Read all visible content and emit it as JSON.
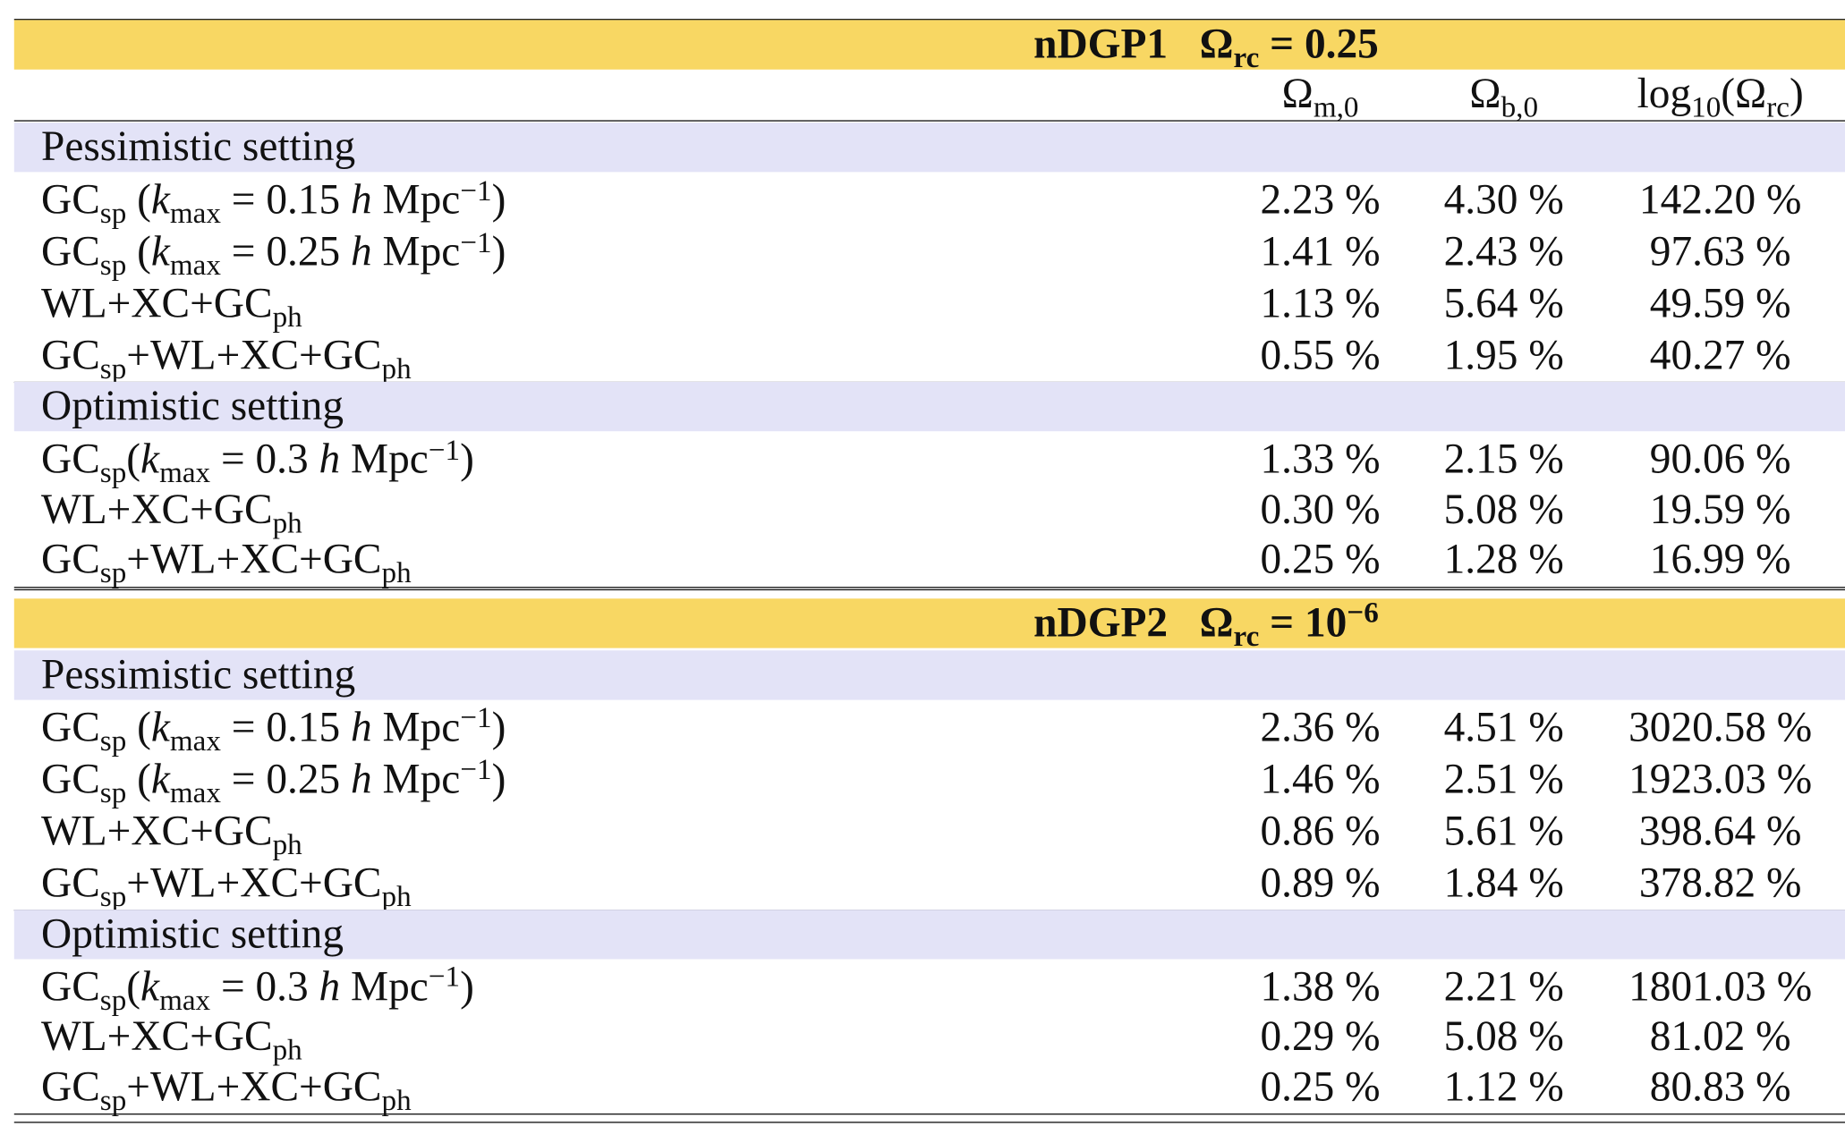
{
  "sections": [
    {
      "title": [
        {
          "text": "nDGP1   Ω"
        },
        {
          "text": "rc",
          "sub": true
        },
        {
          "text": " = 0.25"
        }
      ],
      "columns": [
        [
          {
            "text": "Ω"
          },
          {
            "text": "m,0",
            "sub": true
          }
        ],
        [
          {
            "text": "Ω"
          },
          {
            "text": "b,0",
            "sub": true
          }
        ],
        [
          {
            "text": "log"
          },
          {
            "text": "10",
            "sub": true
          },
          {
            "text": "(Ω"
          },
          {
            "text": "rc",
            "sub": true
          },
          {
            "text": ")"
          }
        ]
      ],
      "groups": [
        {
          "name": "Pessimistic setting",
          "rows": [
            {
              "label": [
                {
                  "text": "GC"
                },
                {
                  "text": "sp",
                  "sub": true
                },
                {
                  "text": " ("
                },
                {
                  "text": "k",
                  "italic": true
                },
                {
                  "text": "max",
                  "sub": true
                },
                {
                  "text": " = 0.15 "
                },
                {
                  "text": "h",
                  "italic": true
                },
                {
                  "text": " Mpc"
                },
                {
                  "text": "−1",
                  "sup": true
                },
                {
                  "text": ")"
                }
              ],
              "values": [
                "2.23 %",
                "4.30 %",
                "142.20 %"
              ]
            },
            {
              "label": [
                {
                  "text": "GC"
                },
                {
                  "text": "sp",
                  "sub": true
                },
                {
                  "text": " ("
                },
                {
                  "text": "k",
                  "italic": true
                },
                {
                  "text": "max",
                  "sub": true
                },
                {
                  "text": " = 0.25 "
                },
                {
                  "text": "h",
                  "italic": true
                },
                {
                  "text": " Mpc"
                },
                {
                  "text": "−1",
                  "sup": true
                },
                {
                  "text": ")"
                }
              ],
              "values": [
                "1.41 %",
                "2.43 %",
                "97.63 %"
              ]
            },
            {
              "label": [
                {
                  "text": "WL+XC+GC"
                },
                {
                  "text": "ph",
                  "sub": true
                }
              ],
              "values": [
                "1.13 %",
                "5.64 %",
                "49.59 %"
              ]
            },
            {
              "label": [
                {
                  "text": "GC"
                },
                {
                  "text": "sp",
                  "sub": true
                },
                {
                  "text": "+WL+XC+GC"
                },
                {
                  "text": "ph",
                  "sub": true
                }
              ],
              "values": [
                "0.55 %",
                "1.95 %",
                "40.27 %"
              ]
            }
          ]
        },
        {
          "name": "Optimistic setting",
          "rows": [
            {
              "label": [
                {
                  "text": "GC"
                },
                {
                  "text": "sp",
                  "sub": true
                },
                {
                  "text": "("
                },
                {
                  "text": "k",
                  "italic": true
                },
                {
                  "text": "max",
                  "sub": true
                },
                {
                  "text": " = 0.3 "
                },
                {
                  "text": "h",
                  "italic": true
                },
                {
                  "text": " Mpc"
                },
                {
                  "text": "−1",
                  "sup": true
                },
                {
                  "text": ")"
                }
              ],
              "values": [
                "1.33 %",
                "2.15 %",
                "90.06 %"
              ]
            },
            {
              "label": [
                {
                  "text": "WL+XC+GC"
                },
                {
                  "text": "ph",
                  "sub": true
                }
              ],
              "values": [
                "0.30 %",
                "5.08 %",
                "19.59 %"
              ]
            },
            {
              "label": [
                {
                  "text": "GC"
                },
                {
                  "text": "sp",
                  "sub": true
                },
                {
                  "text": "+WL+XC+GC"
                },
                {
                  "text": "ph",
                  "sub": true
                }
              ],
              "values": [
                "0.25 %",
                "1.28 %",
                "16.99 %"
              ]
            }
          ]
        }
      ]
    },
    {
      "title": [
        {
          "text": "nDGP2   Ω"
        },
        {
          "text": "rc",
          "sub": true
        },
        {
          "text": " = 10"
        },
        {
          "text": "−6",
          "sup": true
        }
      ],
      "groups": [
        {
          "name": "Pessimistic setting",
          "rows": [
            {
              "label": [
                {
                  "text": "GC"
                },
                {
                  "text": "sp",
                  "sub": true
                },
                {
                  "text": " ("
                },
                {
                  "text": "k",
                  "italic": true
                },
                {
                  "text": "max",
                  "sub": true
                },
                {
                  "text": " = 0.15 "
                },
                {
                  "text": "h",
                  "italic": true
                },
                {
                  "text": " Mpc"
                },
                {
                  "text": "−1",
                  "sup": true
                },
                {
                  "text": ")"
                }
              ],
              "values": [
                "2.36 %",
                "4.51 %",
                "3020.58 %"
              ]
            },
            {
              "label": [
                {
                  "text": "GC"
                },
                {
                  "text": "sp",
                  "sub": true
                },
                {
                  "text": " ("
                },
                {
                  "text": "k",
                  "italic": true
                },
                {
                  "text": "max",
                  "sub": true
                },
                {
                  "text": " = 0.25 "
                },
                {
                  "text": "h",
                  "italic": true
                },
                {
                  "text": " Mpc"
                },
                {
                  "text": "−1",
                  "sup": true
                },
                {
                  "text": ")"
                }
              ],
              "values": [
                "1.46 %",
                "2.51 %",
                "1923.03 %"
              ]
            },
            {
              "label": [
                {
                  "text": "WL+XC+GC"
                },
                {
                  "text": "ph",
                  "sub": true
                }
              ],
              "values": [
                "0.86 %",
                "5.61 %",
                "398.64 %"
              ]
            },
            {
              "label": [
                {
                  "text": "GC"
                },
                {
                  "text": "sp",
                  "sub": true
                },
                {
                  "text": "+WL+XC+GC"
                },
                {
                  "text": "ph",
                  "sub": true
                }
              ],
              "values": [
                "0.89 %",
                "1.84 %",
                "378.82 %"
              ]
            }
          ]
        },
        {
          "name": "Optimistic setting",
          "rows": [
            {
              "label": [
                {
                  "text": "GC"
                },
                {
                  "text": "sp",
                  "sub": true
                },
                {
                  "text": "("
                },
                {
                  "text": "k",
                  "italic": true
                },
                {
                  "text": "max",
                  "sub": true
                },
                {
                  "text": " = 0.3 "
                },
                {
                  "text": "h",
                  "italic": true
                },
                {
                  "text": " Mpc"
                },
                {
                  "text": "−1",
                  "sup": true
                },
                {
                  "text": ")"
                }
              ],
              "values": [
                "1.38 %",
                "2.21 %",
                "1801.03 %"
              ]
            },
            {
              "label": [
                {
                  "text": "WL+XC+GC"
                },
                {
                  "text": "ph",
                  "sub": true
                }
              ],
              "values": [
                "0.29 %",
                "5.08 %",
                "81.02 %"
              ]
            },
            {
              "label": [
                {
                  "text": "GC"
                },
                {
                  "text": "sp",
                  "sub": true
                },
                {
                  "text": "+WL+XC+GC"
                },
                {
                  "text": "ph",
                  "sub": true
                }
              ],
              "values": [
                "0.25 %",
                "1.12 %",
                "80.83 %"
              ]
            }
          ]
        }
      ]
    }
  ]
}
